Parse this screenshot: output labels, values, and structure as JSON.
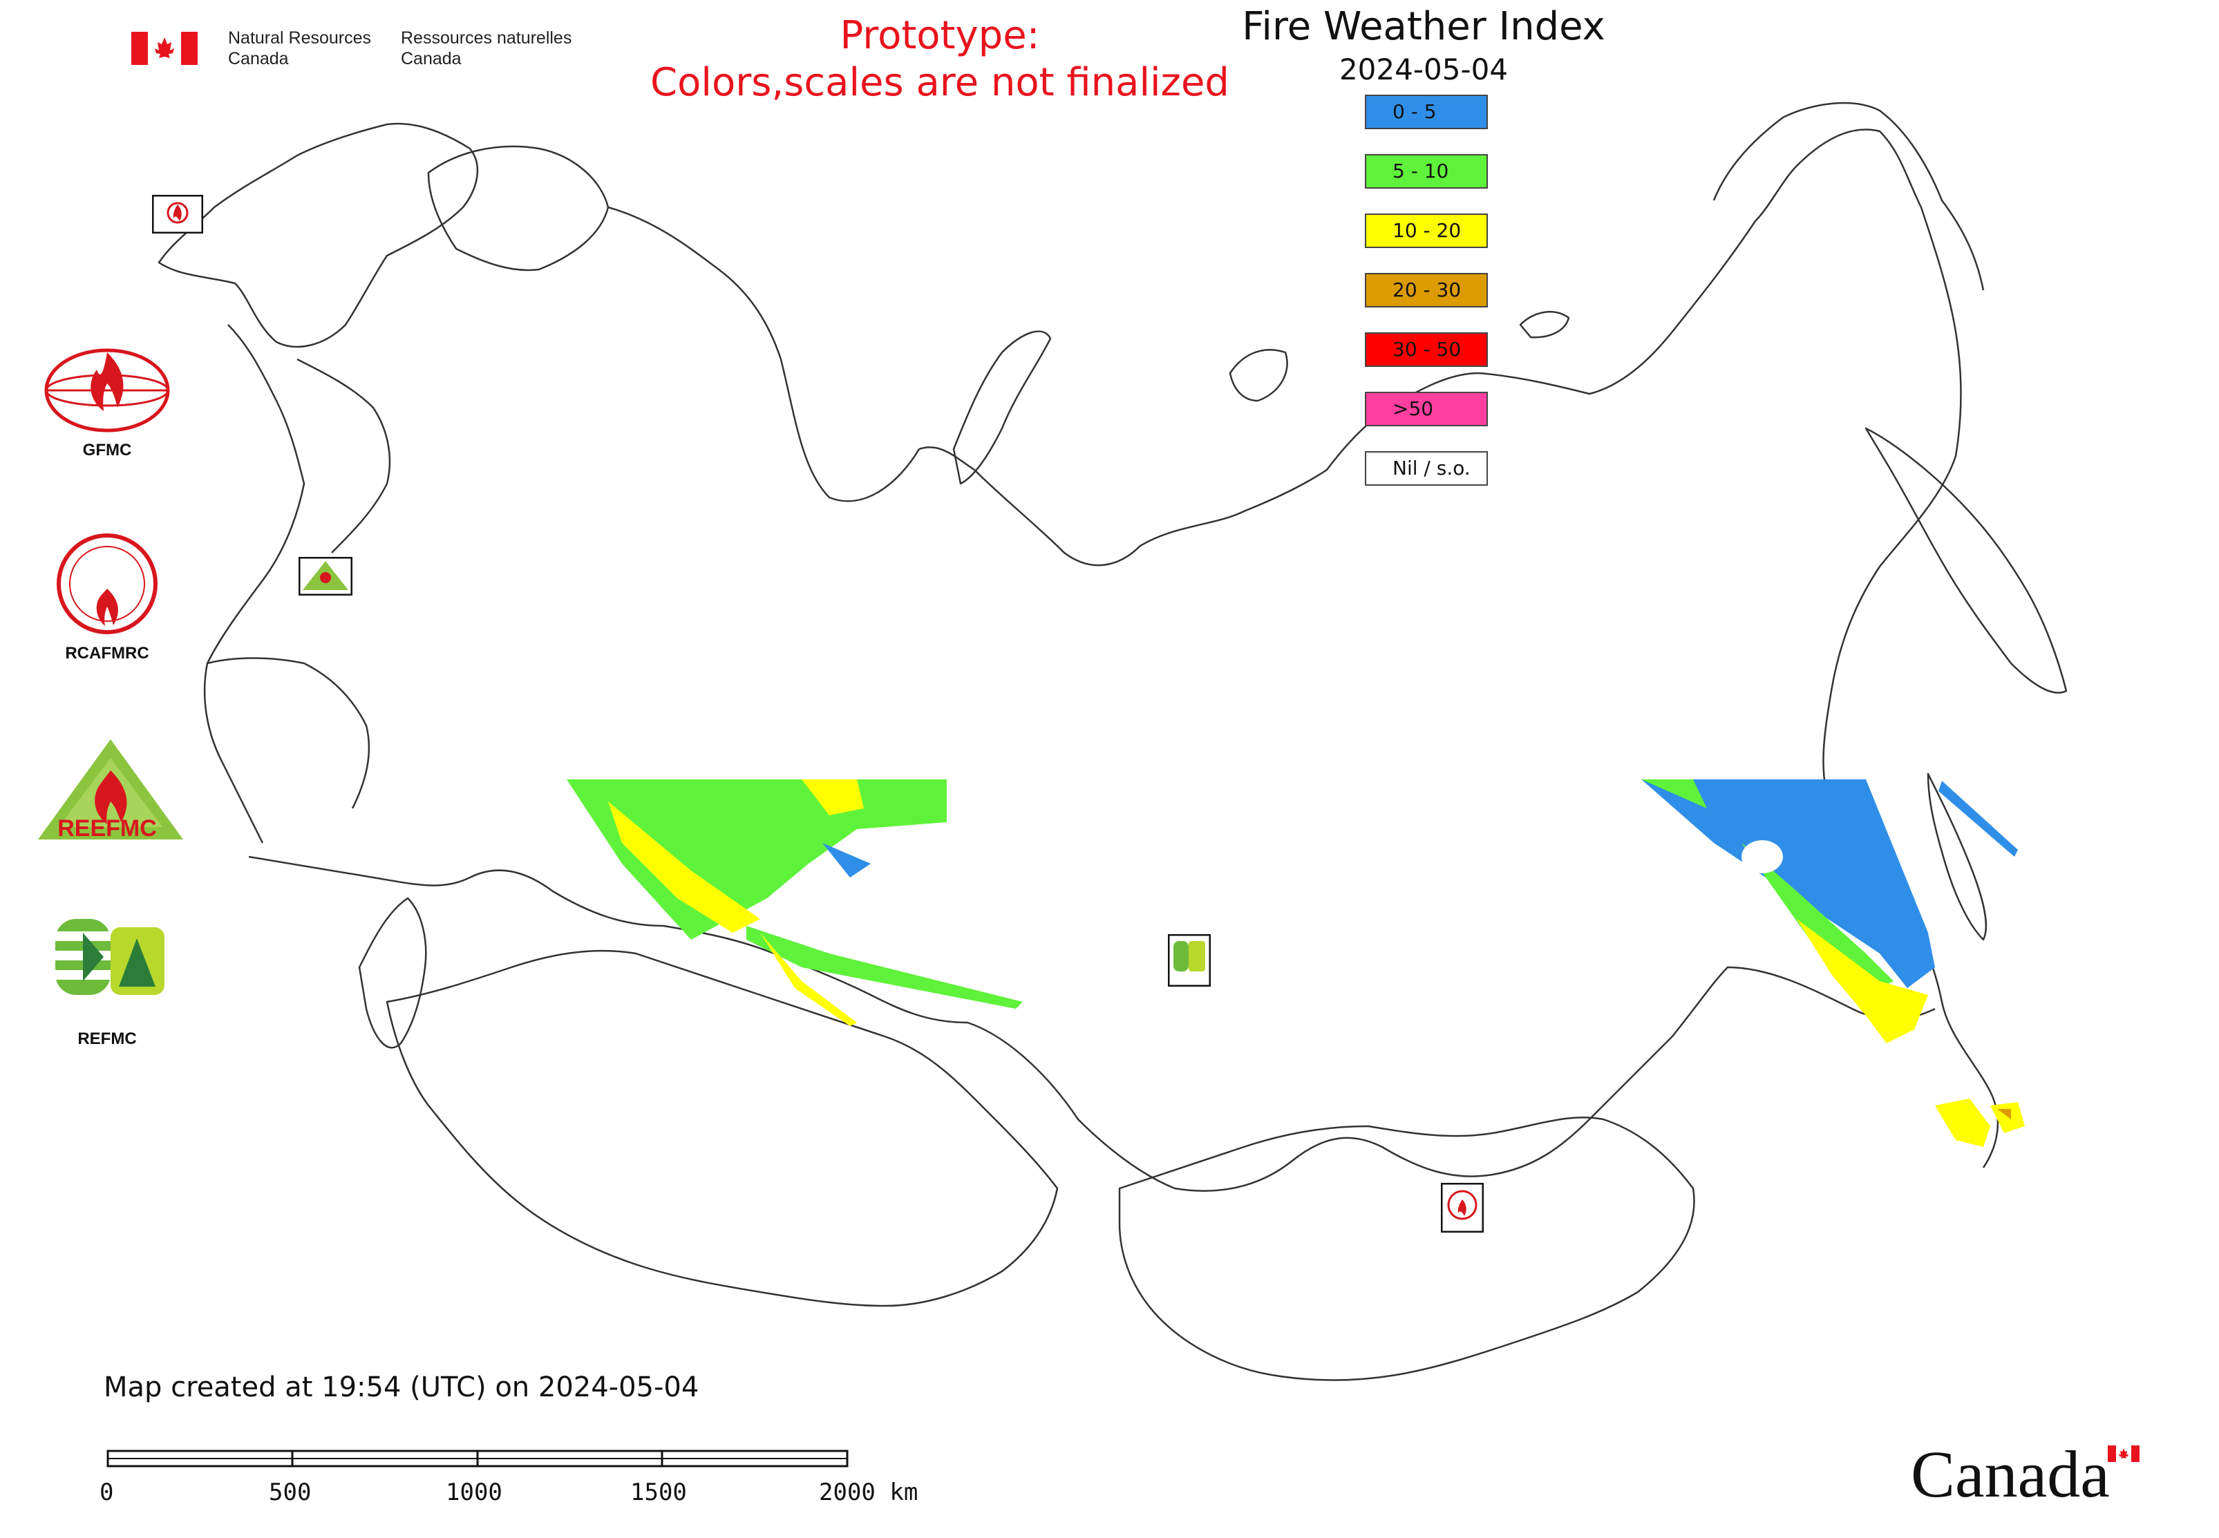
{
  "header": {
    "agency_en_line1": "Natural Resources",
    "agency_en_line2": "Canada",
    "agency_fr_line1": "Ressources naturelles",
    "agency_fr_line2": "Canada",
    "prototype_line1": "Prototype:",
    "prototype_line2": "Colors,scales are not finalized"
  },
  "map": {
    "title": "Fire Weather Index",
    "date": "2024-05-04",
    "legend": [
      {
        "label": "0 - 5",
        "color": "#2f8fe8"
      },
      {
        "label": "5 - 10",
        "color": "#5ff23a"
      },
      {
        "label": "10 - 20",
        "color": "#ffff00"
      },
      {
        "label": "20 - 30",
        "color": "#dc9b00"
      },
      {
        "label": "30 - 50",
        "color": "#ff0000"
      },
      {
        "label": ">50",
        "color": "#ff3fa0"
      },
      {
        "label": "Nil / s.o.",
        "color": "#ffffff"
      }
    ]
  },
  "orgs": [
    {
      "label": "GFMC",
      "icon": "gfmc-logo-icon"
    },
    {
      "label": "RCAFMRC",
      "icon": "rcafmrc-logo-icon"
    },
    {
      "label": "REEFMC",
      "icon": "reefmc-logo-icon"
    },
    {
      "label": "REFMC",
      "icon": "refmc-logo-icon"
    }
  ],
  "footer": {
    "created_note": "Map created at 19:54 (UTC) on 2024-05-04",
    "scale_ticks": [
      "0",
      "500",
      "1000",
      "1500",
      "2000 km"
    ],
    "wordmark": "Canada"
  }
}
